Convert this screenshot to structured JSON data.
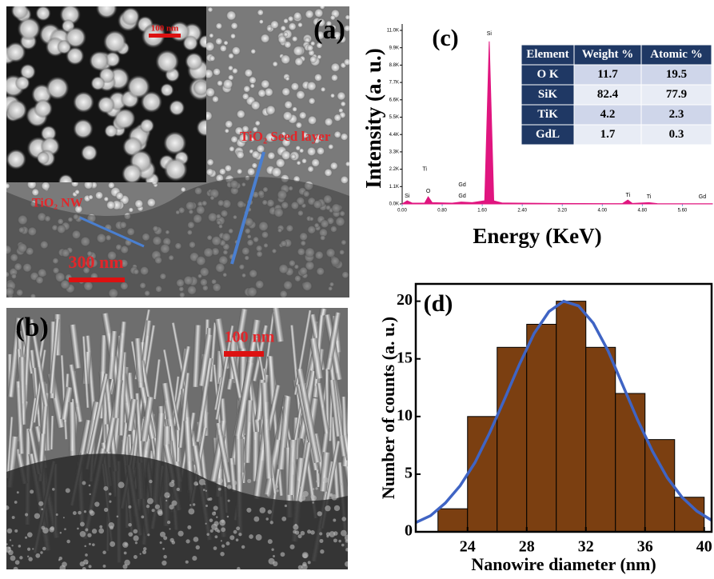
{
  "images": [
    {
      "label": "(a)",
      "inset_scale": "100 nm",
      "scale": "300 nm",
      "annotations": [
        "TiO₂ Seed layer",
        "TiO₂ NW"
      ]
    },
    {
      "label": "(b)",
      "scale": "100 nm"
    }
  ],
  "chart_data": [
    {
      "type": "line",
      "panel_label": "(c)",
      "y_label": "Intensity (a. u.)",
      "x_label": "Energy (KeV)",
      "x": [
        0,
        0.1,
        0.2,
        0.45,
        0.52,
        0.6,
        1.0,
        1.18,
        1.4,
        1.65,
        1.74,
        1.83,
        2.0,
        3.0,
        4.4,
        4.51,
        4.6,
        4.93,
        5.1,
        6.2
      ],
      "values": [
        0,
        200,
        50,
        60,
        450,
        80,
        50,
        120,
        80,
        200,
        10300,
        200,
        60,
        30,
        20,
        250,
        30,
        80,
        20,
        10
      ],
      "color": "#e0157f",
      "axis_color": "#6fa8dc",
      "xlim": [
        0,
        6.2
      ],
      "ylim": [
        0,
        11000
      ],
      "xticks": [
        {
          "value": 0,
          "label": "0.00"
        },
        {
          "value": 0.8,
          "label": "0.80"
        },
        {
          "value": 1.6,
          "label": "1.60"
        },
        {
          "value": 2.4,
          "label": "2.40"
        },
        {
          "value": 3.2,
          "label": "3.20"
        },
        {
          "value": 4.0,
          "label": "4.00"
        },
        {
          "value": 4.8,
          "label": "4.80"
        },
        {
          "value": 5.6,
          "label": "5.60"
        }
      ],
      "yticks": [
        {
          "value": 0,
          "label": "0.0K"
        },
        {
          "value": 1100,
          "label": "1.1K"
        },
        {
          "value": 2200,
          "label": "2.2K"
        },
        {
          "value": 3300,
          "label": "3.3K"
        },
        {
          "value": 4400,
          "label": "4.4K"
        },
        {
          "value": 5500,
          "label": "5.5K"
        },
        {
          "value": 6600,
          "label": "6.6K"
        },
        {
          "value": 7700,
          "label": "7.7K"
        },
        {
          "value": 8800,
          "label": "8.8K"
        },
        {
          "value": 9900,
          "label": "9.9K"
        },
        {
          "value": 11000,
          "label": "11.0K"
        }
      ],
      "annotations": [
        {
          "text": "Si",
          "x": 0.1,
          "y": 500
        },
        {
          "text": "O",
          "x": 0.52,
          "y": 800
        },
        {
          "text": "Ti",
          "x": 0.45,
          "y": 2200
        },
        {
          "text": "Gd",
          "x": 1.2,
          "y": 1200
        },
        {
          "text": "Gd",
          "x": 1.2,
          "y": 500
        },
        {
          "text": "Si",
          "x": 1.74,
          "y": 10800
        },
        {
          "text": "Ti",
          "x": 4.51,
          "y": 550
        },
        {
          "text": "Ti",
          "x": 4.93,
          "y": 450
        },
        {
          "text": "Gd",
          "x": 6.0,
          "y": 450
        }
      ],
      "table": {
        "header": [
          "Element",
          "Weight %",
          "Atomic %"
        ],
        "rows": [
          [
            "O K",
            11.7,
            19.5
          ],
          [
            "SiK",
            82.4,
            77.9
          ],
          [
            "TiK",
            4.2,
            2.3
          ],
          [
            "GdL",
            1.7,
            0.3
          ]
        ]
      }
    },
    {
      "type": "histogram",
      "panel_label": "(d)",
      "y_label": "Number of counts (a. u.)",
      "x_label": "Nanowire diameter (nm)",
      "bins": [
        22,
        24,
        26,
        28,
        30,
        32,
        34,
        36,
        38,
        40
      ],
      "values": [
        2,
        10,
        16,
        18,
        20,
        16,
        12,
        8,
        3
      ],
      "color": "#7b3f11",
      "xlim": [
        20.5,
        40.5
      ],
      "ylim": [
        0,
        21.5
      ],
      "xticks": [
        24,
        28,
        32,
        36,
        40
      ],
      "yticks": [
        0,
        5,
        10,
        15,
        20
      ],
      "fit": {
        "color": "#3f64c4",
        "x": [
          20.5,
          21.5,
          22.5,
          23.5,
          24.5,
          25.5,
          26.5,
          27.5,
          28.5,
          29.5,
          30.5,
          31.5,
          32.5,
          33.5,
          34.5,
          35.5,
          36.5,
          37.5,
          38.5,
          39.5,
          40.5
        ],
        "values": [
          0.8,
          1.4,
          2.5,
          4.0,
          6.0,
          8.6,
          11.5,
          14.5,
          17.2,
          19.1,
          20.0,
          19.6,
          18.1,
          15.7,
          12.7,
          9.7,
          7.0,
          4.7,
          3.0,
          1.8,
          1.0
        ]
      }
    }
  ]
}
